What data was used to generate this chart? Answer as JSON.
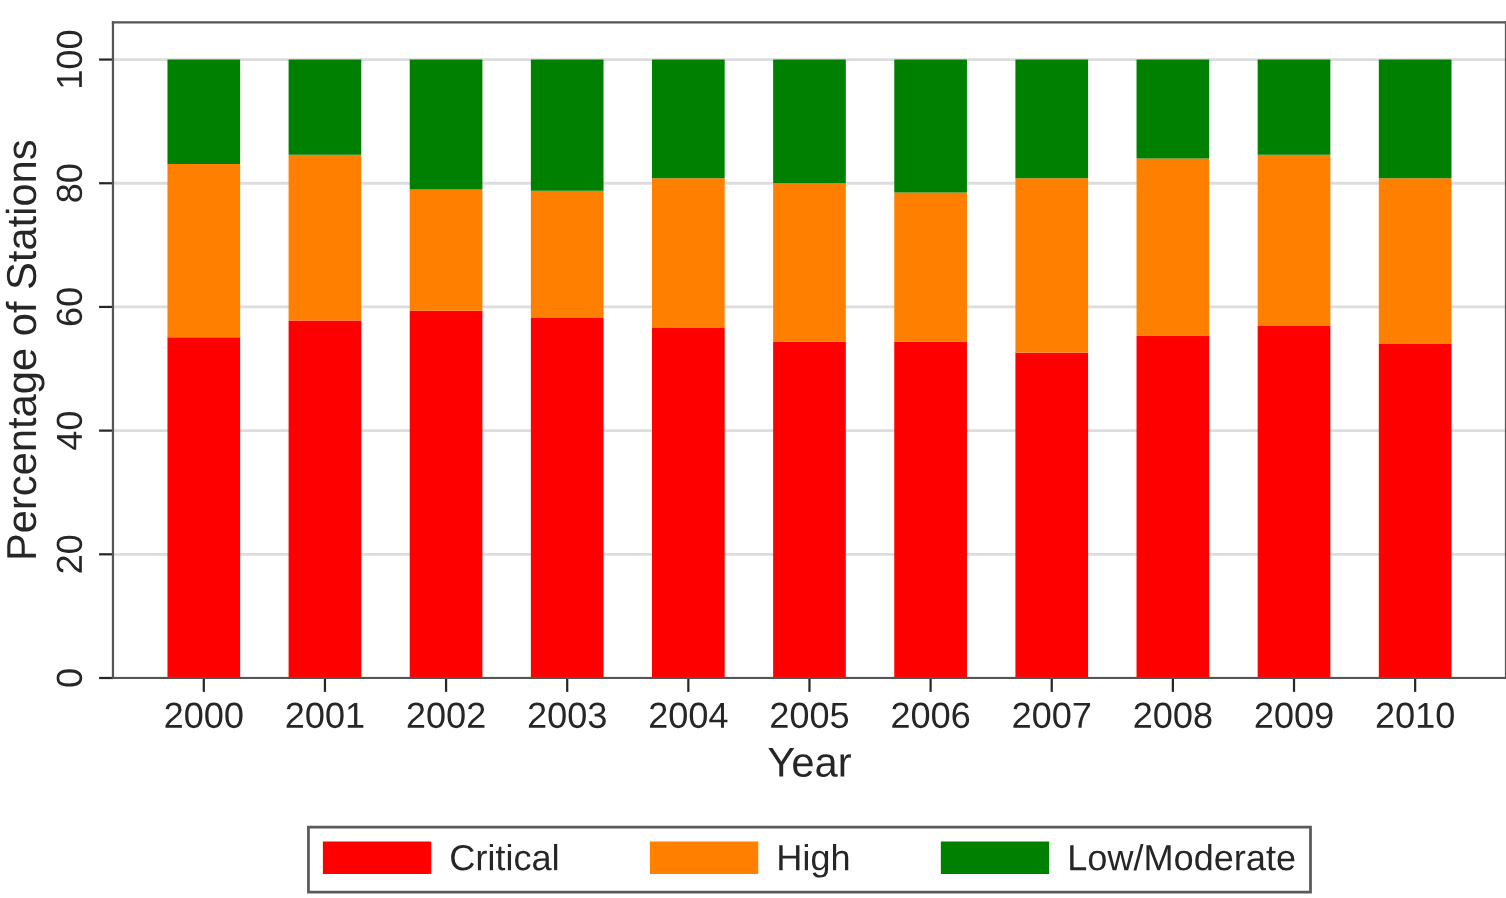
{
  "chart_data": {
    "type": "bar",
    "stacked": true,
    "xlabel": "Year",
    "ylabel": "Percentage of Stations",
    "categories": [
      "2000",
      "2001",
      "2002",
      "2003",
      "2004",
      "2005",
      "2006",
      "2007",
      "2008",
      "2009",
      "2010"
    ],
    "series": [
      {
        "name": "Critical",
        "color": "#ff0000",
        "values": [
          55.1,
          57.8,
          59.4,
          58.2,
          56.6,
          54.4,
          54.4,
          52.6,
          55.4,
          56.9,
          54.0
        ]
      },
      {
        "name": "High",
        "color": "#ff8000",
        "values": [
          28.0,
          26.8,
          19.6,
          20.6,
          24.2,
          25.6,
          24.1,
          28.2,
          28.6,
          27.7,
          26.8
        ]
      },
      {
        "name": "Low/Moderate",
        "color": "#008000",
        "values": [
          16.9,
          15.4,
          21.0,
          21.2,
          19.2,
          20.0,
          21.5,
          19.2,
          16.0,
          15.4,
          19.2
        ]
      }
    ],
    "ylim": [
      0,
      106
    ],
    "yticks": [
      0,
      20,
      40,
      60,
      80,
      100
    ],
    "grid": "y",
    "legend": "bottom"
  }
}
